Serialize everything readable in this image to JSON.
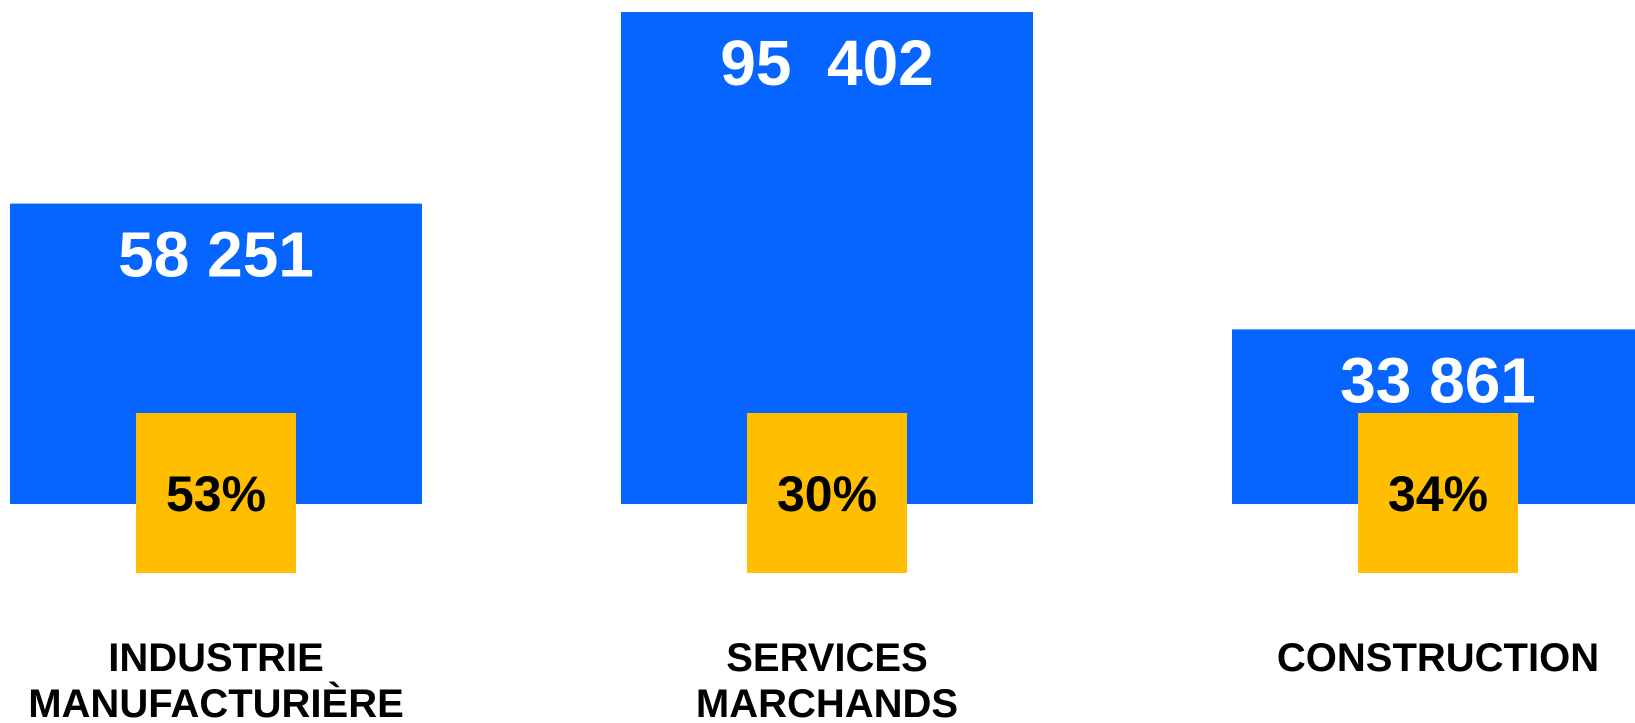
{
  "chart_data": {
    "type": "bar",
    "categories": [
      [
        "INDUSTRIE",
        "MANUFACTURIÈRE"
      ],
      [
        "SERVICES",
        "MARCHANDS"
      ],
      [
        "CONSTRUCTION"
      ]
    ],
    "values": [
      58251,
      95402,
      33861
    ],
    "value_labels": [
      "58 251",
      "95  402",
      "33 861"
    ],
    "percentages": [
      53,
      30,
      34
    ],
    "percentage_labels": [
      "53%",
      "30%",
      "34%"
    ],
    "title": "",
    "xlabel": "",
    "ylabel": "",
    "ylim": [
      0,
      95402
    ],
    "grid": false,
    "legend": "none",
    "colors": {
      "bar": "#0565FE",
      "percentage_box": "#FFBE00",
      "value_text": "#FFFFFF",
      "percentage_text": "#000000",
      "category_text": "#000000"
    }
  }
}
